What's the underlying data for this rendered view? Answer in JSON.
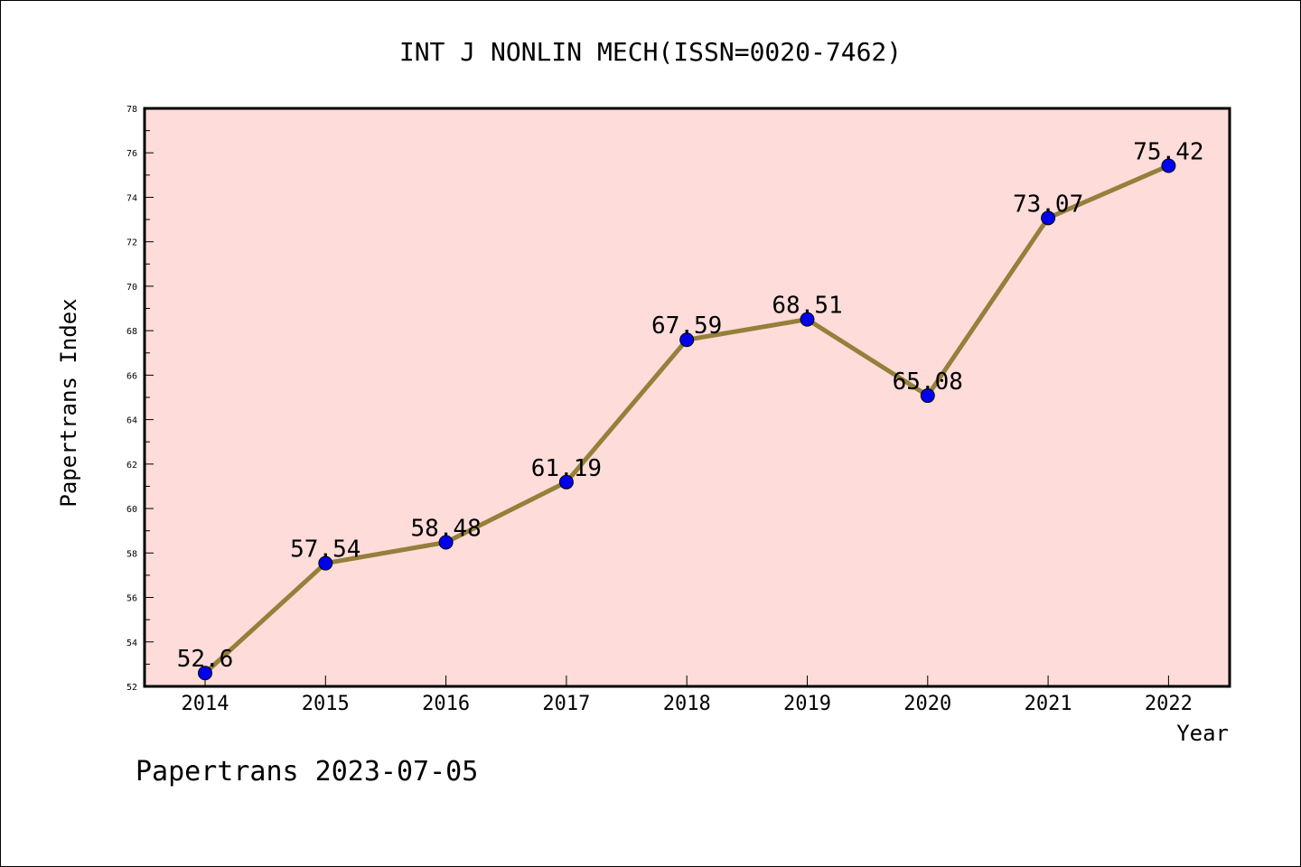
{
  "chart_data": {
    "type": "line",
    "title": "INT J NONLIN MECH(ISSN=0020-7462)",
    "xlabel": "Year",
    "ylabel": "Papertrans Index",
    "categories": [
      "2014",
      "2015",
      "2016",
      "2017",
      "2018",
      "2019",
      "2020",
      "2021",
      "2022"
    ],
    "values": [
      52.6,
      57.54,
      58.48,
      61.19,
      67.59,
      68.51,
      65.08,
      73.07,
      75.42
    ],
    "data_labels": [
      "52.6",
      "57.54",
      "58.48",
      "61.19",
      "67.59",
      "68.51",
      "65.08",
      "73.07",
      "75.42"
    ],
    "ylim": [
      52,
      78
    ],
    "yticks": [
      "52",
      "54",
      "56",
      "58",
      "60",
      "62",
      "64",
      "66",
      "68",
      "70",
      "72",
      "74",
      "76",
      "78"
    ],
    "grid": false,
    "legend": "none",
    "colors": {
      "plot_background": "#fddcda",
      "line": "#94803a",
      "marker": "#0000ee"
    }
  },
  "footer": "Papertrans 2023-07-05"
}
